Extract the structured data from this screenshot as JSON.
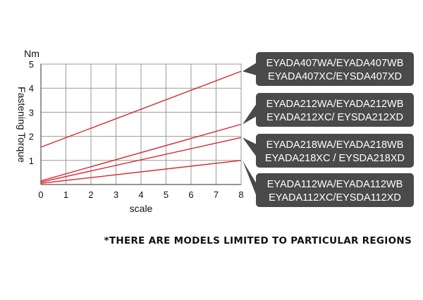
{
  "chart_data": {
    "type": "line",
    "xlabel": "scale",
    "ylabel": "Fastening Torque",
    "yunit": "Nm",
    "xlim": [
      0,
      8
    ],
    "ylim": [
      0,
      5
    ],
    "xticks": [
      0,
      1,
      2,
      3,
      4,
      5,
      6,
      7,
      8
    ],
    "yticks": [
      1,
      2,
      3,
      4,
      5
    ],
    "grid": true,
    "series": [
      {
        "x": [
          0,
          8
        ],
        "values": [
          1.55,
          4.7
        ],
        "label_lines": [
          "EYADA407WA/EYADA407WB",
          "EYADA407XC/EYSDA407XD"
        ]
      },
      {
        "x": [
          0,
          8
        ],
        "values": [
          0.15,
          2.5
        ],
        "label_lines": [
          "EYADA212WA/EYADA212WB",
          "EYADA212XC/ EYSDA212XD"
        ]
      },
      {
        "x": [
          0,
          8
        ],
        "values": [
          0.1,
          1.95
        ],
        "label_lines": [
          "EYADA218WA/EYADA218WB",
          "EYADA218XC / EYSDA218XD"
        ]
      },
      {
        "x": [
          0,
          8
        ],
        "values": [
          0.05,
          1.0
        ],
        "label_lines": [
          "EYADA112WA/EYADA112WB",
          "EYADA112XC/EYSDA112XD"
        ]
      }
    ]
  },
  "colors": {
    "line": "#d9262c",
    "callout_bg": "#4a4a4a",
    "grid": "#9a9a9a"
  },
  "note": "*THERE ARE MODELS LIMITED TO PARTICULAR REGIONS"
}
